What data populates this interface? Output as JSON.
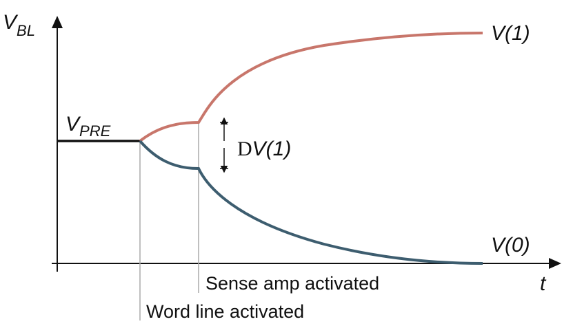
{
  "axes": {
    "y_label": {
      "symbol": "V",
      "subscript": "BL"
    },
    "x_label": "t"
  },
  "levels": {
    "precharge": {
      "symbol": "V",
      "subscript": "PRE"
    },
    "high": "V(1)",
    "low": "V(0)"
  },
  "signal": {
    "delta": "D",
    "label": "V(1)"
  },
  "events": {
    "sense_amp": "Sense amp activated",
    "word_line": "Word line activated"
  }
}
